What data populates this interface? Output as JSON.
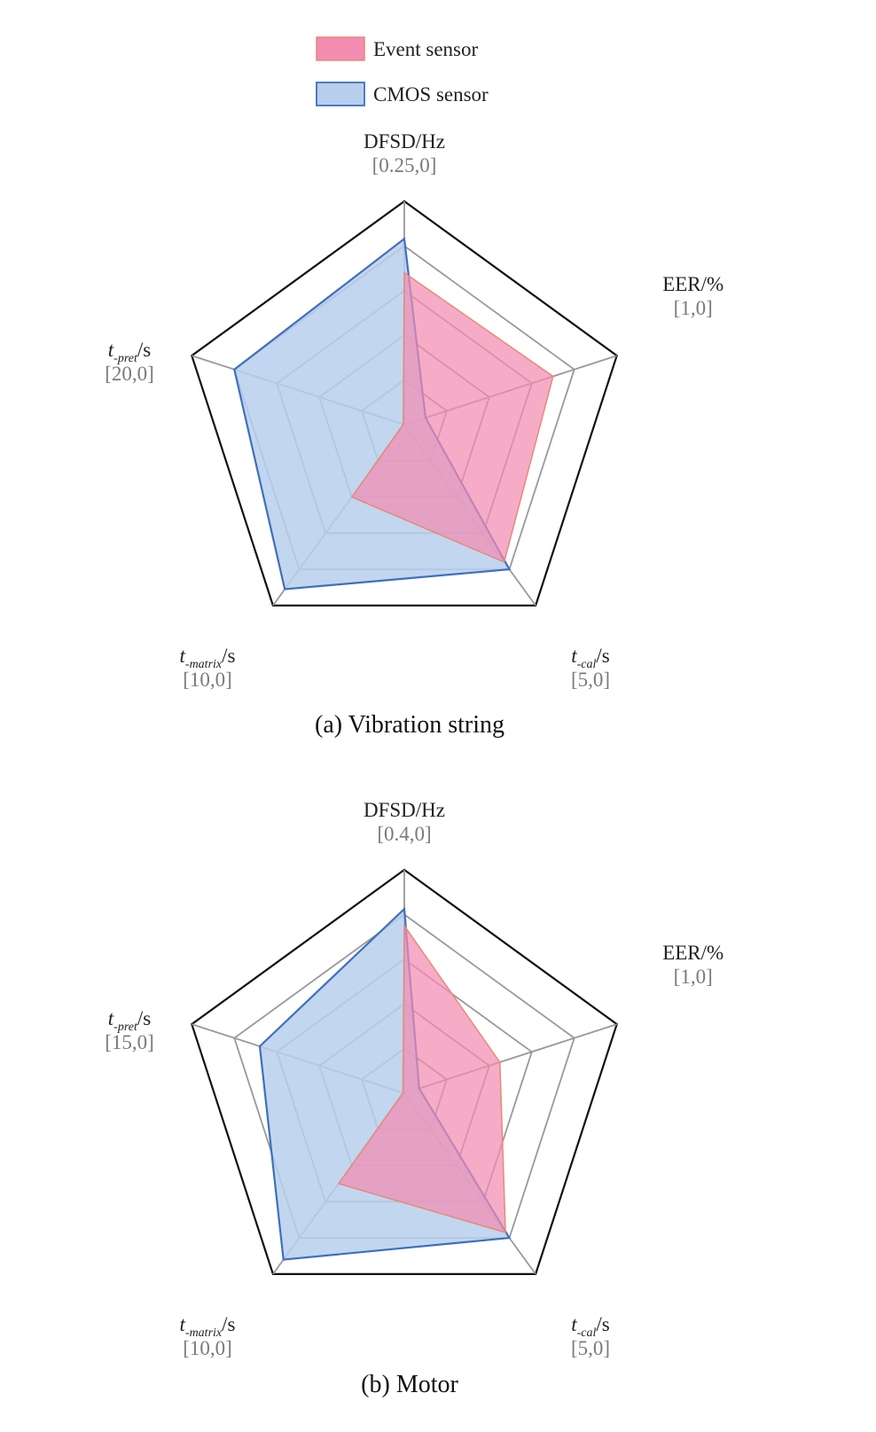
{
  "colors": {
    "event_fill": "#f28cb1",
    "event_stroke": "#e58a78",
    "cmos_fill": "#b7cfec",
    "cmos_stroke": "#3f6fbf",
    "grid": "#999999",
    "outer": "#111111"
  },
  "legend": {
    "items": [
      {
        "label": "Event sensor",
        "color": "#f28cb1",
        "stroke": "#e58a78"
      },
      {
        "label": "CMOS sensor",
        "color": "#b7cfec",
        "stroke": "#3f6fbf"
      }
    ]
  },
  "chart_data": [
    {
      "type": "radar",
      "caption": "(a) Vibration string",
      "axes": [
        {
          "name": "DFSD",
          "unit": "/Hz",
          "range_label": "[0.25,0]",
          "max": 0.25
        },
        {
          "name": "EER",
          "unit": "/%",
          "range_label": "[1,0]",
          "max": 1
        },
        {
          "name": "t",
          "sub": "-cal",
          "unit": "/s",
          "range_label": "[5,0]",
          "max": 5
        },
        {
          "name": "t",
          "sub": "-matrix",
          "unit": "/s",
          "range_label": "[10,0]",
          "max": 10
        },
        {
          "name": "t",
          "sub": "-pret",
          "unit": "/s",
          "range_label": "[20,0]",
          "max": 20
        }
      ],
      "series": [
        {
          "name": "Event sensor",
          "values": [
            0.17,
            0.7,
            3.8,
            4.0,
            0.1
          ]
        },
        {
          "name": "CMOS sensor",
          "values": [
            0.208,
            0.1,
            4.0,
            9.1,
            16.0
          ]
        }
      ]
    },
    {
      "type": "radar",
      "caption": "(b) Motor",
      "axes": [
        {
          "name": "DFSD",
          "unit": "/Hz",
          "range_label": "[0.4,0]",
          "max": 0.4
        },
        {
          "name": "EER",
          "unit": "/%",
          "range_label": "[1,0]",
          "max": 1
        },
        {
          "name": "t",
          "sub": "-cal",
          "unit": "/s",
          "range_label": "[5,0]",
          "max": 5
        },
        {
          "name": "t",
          "sub": "-matrix",
          "unit": "/s",
          "range_label": "[10,0]",
          "max": 10
        },
        {
          "name": "t",
          "sub": "-pret",
          "unit": "/s",
          "range_label": "[15,0]",
          "max": 15
        }
      ],
      "series": [
        {
          "name": "Event sensor",
          "values": [
            0.3,
            0.45,
            3.85,
            5.0,
            0.1
          ]
        },
        {
          "name": "CMOS sensor",
          "values": [
            0.33,
            0.07,
            4.0,
            9.2,
            10.2
          ]
        }
      ]
    }
  ]
}
